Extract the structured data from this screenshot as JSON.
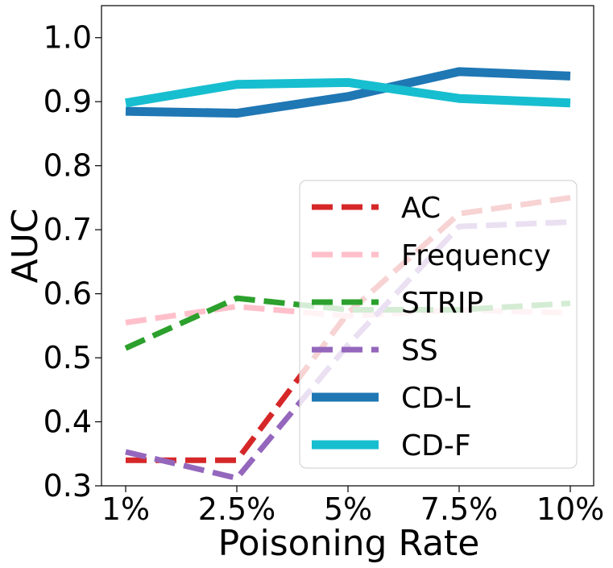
{
  "chart_data": {
    "type": "line",
    "title": "",
    "xlabel": "Poisoning Rate",
    "ylabel": "AUC",
    "categories": [
      "1%",
      "2.5%",
      "5%",
      "7.5%",
      "10%"
    ],
    "ylim": [
      0.3,
      1.05
    ],
    "yticks": [
      "0.3",
      "0.4",
      "0.5",
      "0.6",
      "0.7",
      "0.8",
      "0.9",
      "1.0"
    ],
    "grid": false,
    "legend_position": "lower-right",
    "series": [
      {
        "name": "AC",
        "values": [
          0.34,
          0.34,
          0.57,
          0.725,
          0.75
        ],
        "color": "#d62728",
        "style": "dashed"
      },
      {
        "name": "Frequency",
        "values": [
          0.555,
          0.58,
          0.565,
          0.575,
          0.57
        ],
        "color": "#ffc0cb",
        "style": "dashed"
      },
      {
        "name": "STRIP",
        "values": [
          0.515,
          0.593,
          0.575,
          0.575,
          0.585
        ],
        "color": "#2ca02c",
        "style": "dashed"
      },
      {
        "name": "SS",
        "values": [
          0.353,
          0.312,
          0.52,
          0.705,
          0.712
        ],
        "color": "#9467bd",
        "style": "dashed"
      },
      {
        "name": "CD-L",
        "values": [
          0.885,
          0.882,
          0.908,
          0.947,
          0.94
        ],
        "color": "#1f77b4",
        "style": "solid"
      },
      {
        "name": "CD-F",
        "values": [
          0.898,
          0.927,
          0.93,
          0.905,
          0.898
        ],
        "color": "#17becf",
        "style": "solid"
      }
    ]
  }
}
